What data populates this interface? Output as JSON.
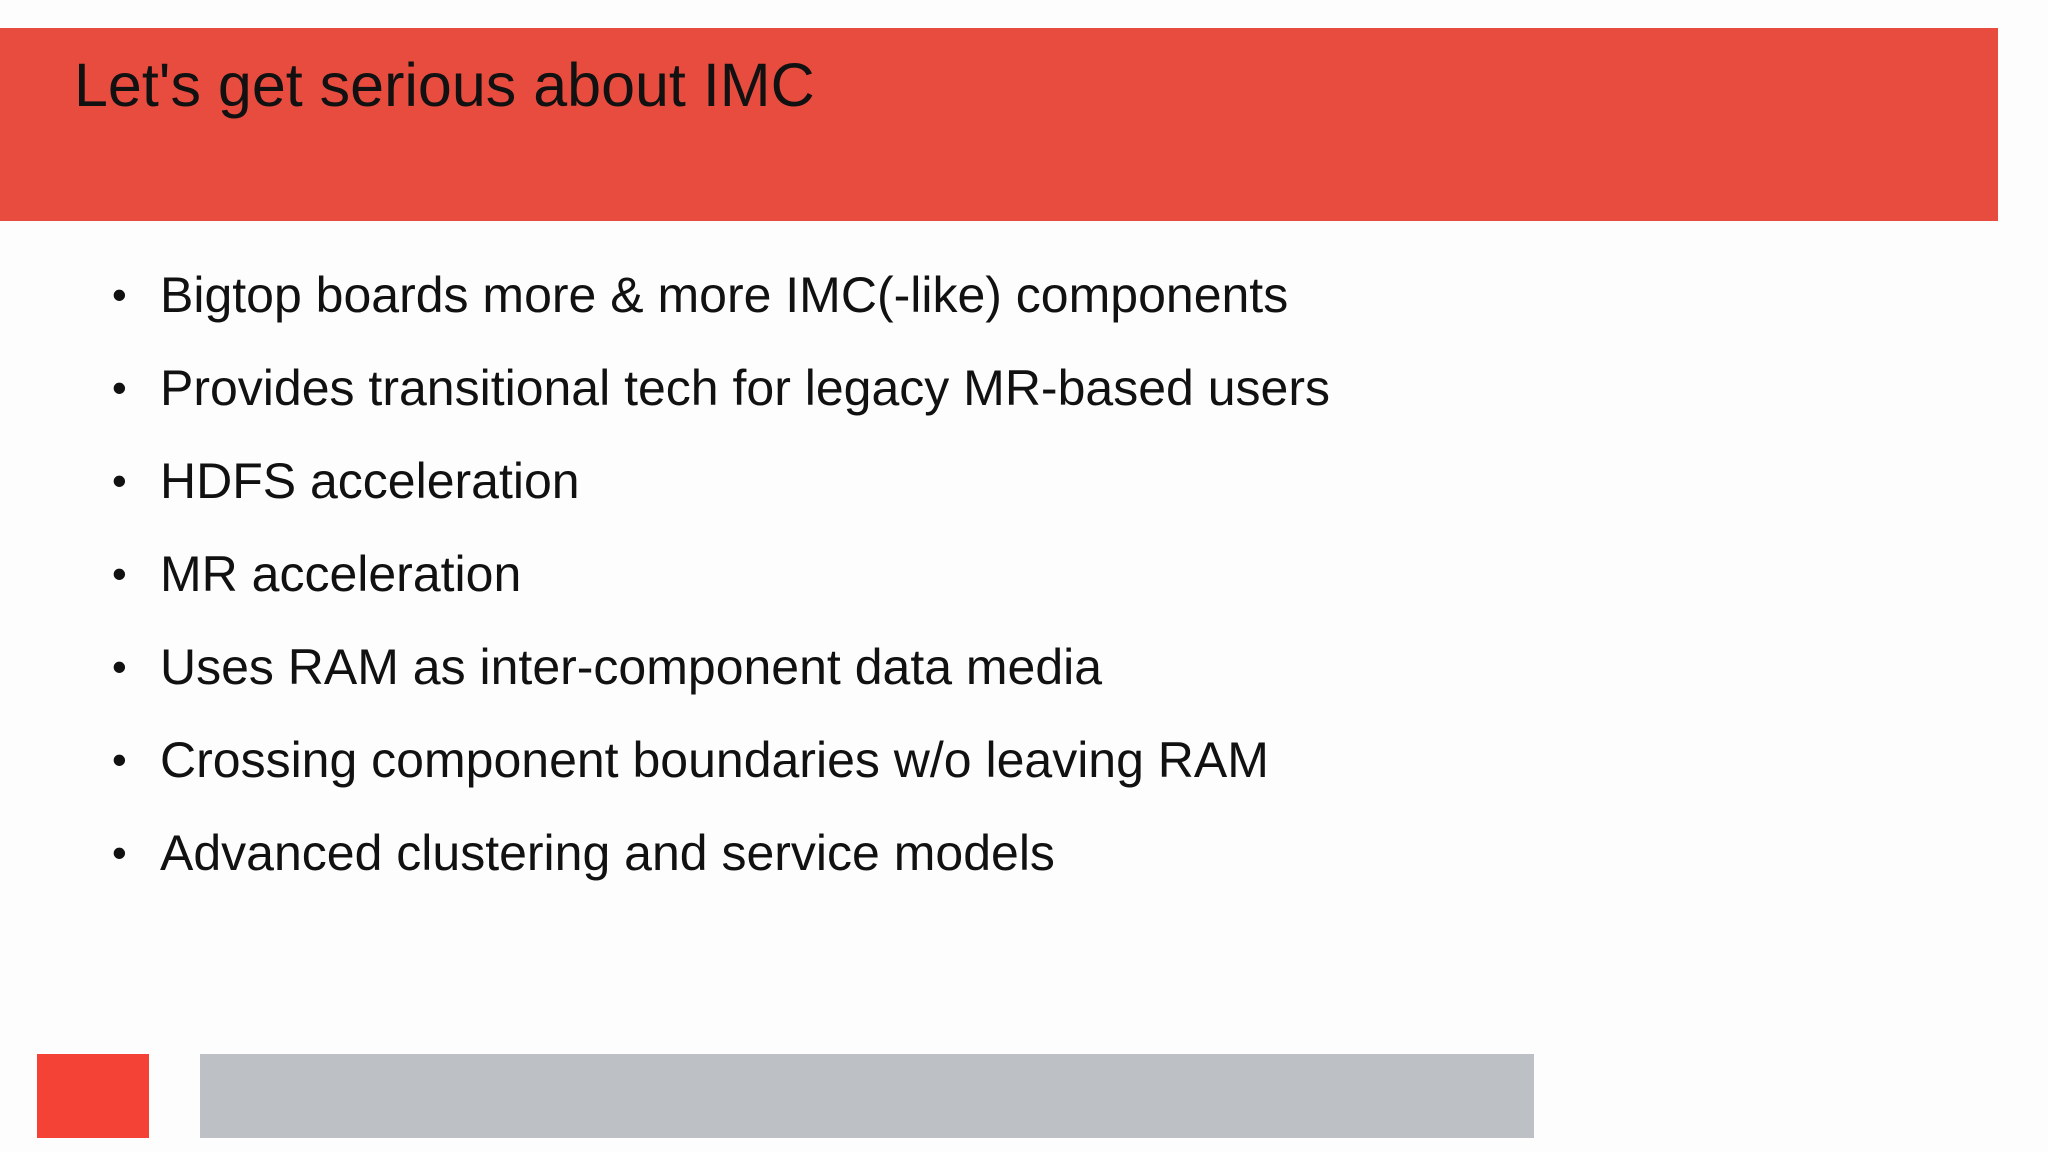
{
  "slide": {
    "title": "Let's get serious about IMC",
    "bullet_symbol": "•",
    "bullets": [
      "Bigtop boards more & more IMC(-like) components",
      "Provides transitional tech for legacy MR-based users",
      "HDFS acceleration",
      "MR acceleration",
      "Uses RAM as inter-component data media",
      "Crossing component boundaries w/o leaving RAM",
      "Advanced clustering and service models"
    ]
  },
  "colors": {
    "header_band": "#e74c3f",
    "footer_square": "#f44336",
    "footer_bar": "#bdc1c6",
    "background": "#fdfdfd",
    "text": "#111111"
  }
}
